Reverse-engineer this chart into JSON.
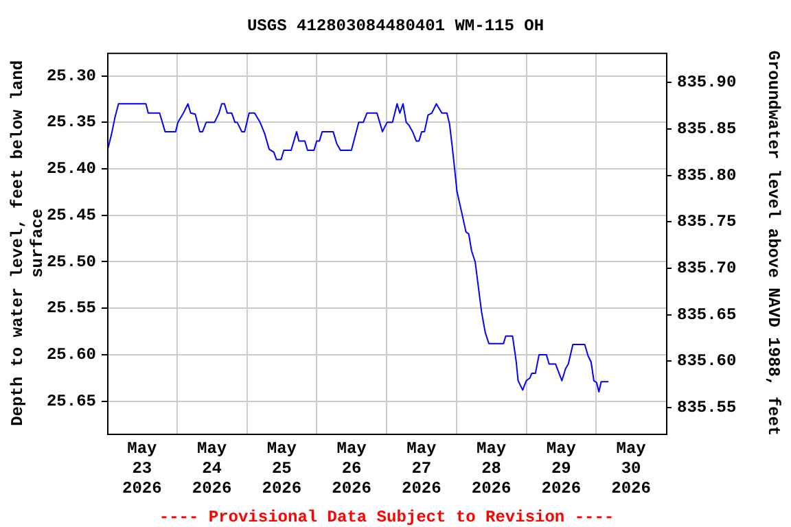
{
  "chart_data": {
    "type": "line",
    "title": "USGS 412803084480401 WM-115 OH",
    "ylabel": "Depth to water level, feet below land\nsurface",
    "y2label": "Groundwater level above NAVD 1988, feet",
    "annotations": [
      "---- Provisional Data Subject to Revision ----"
    ],
    "x": [
      "2026-05-23T00:18",
      "2026-05-23T01:34",
      "2026-05-23T02:40",
      "2026-05-23T03:55",
      "2026-05-23T13:20",
      "2026-05-23T14:07",
      "2026-05-23T18:02",
      "2026-05-23T19:55",
      "2026-05-23T23:32",
      "2026-05-24T00:19",
      "2026-05-24T02:12",
      "2026-05-24T03:46",
      "2026-05-24T04:42",
      "2026-05-24T06:16",
      "2026-05-24T07:50",
      "2026-05-24T08:47",
      "2026-05-24T10:02",
      "2026-05-24T12:52",
      "2026-05-24T14:26",
      "2026-05-24T15:22",
      "2026-05-24T16:19",
      "2026-05-24T17:15",
      "2026-05-24T18:49",
      "2026-05-24T19:55",
      "2026-05-24T20:42",
      "2026-05-24T22:16",
      "2026-05-24T23:13",
      "2026-05-25T00:47",
      "2026-05-25T02:40",
      "2026-05-25T04:33",
      "2026-05-25T06:07",
      "2026-05-25T07:41",
      "2026-05-25T09:15",
      "2026-05-25T10:12",
      "2026-05-25T11:46",
      "2026-05-25T12:42",
      "2026-05-25T15:13",
      "2026-05-25T17:06",
      "2026-05-25T17:53",
      "2026-05-25T19:55",
      "2026-05-25T20:52",
      "2026-05-25T23:04",
      "2026-05-26T00:00",
      "2026-05-26T00:56",
      "2026-05-26T01:53",
      "2026-05-26T05:39",
      "2026-05-26T06:54",
      "2026-05-26T08:10",
      "2026-05-26T11:55",
      "2026-05-26T14:26",
      "2026-05-26T16:00",
      "2026-05-26T17:15",
      "2026-05-26T20:42",
      "2026-05-26T22:35",
      "2026-05-27T00:09",
      "2026-05-27T02:02",
      "2026-05-27T03:37",
      "2026-05-27T04:33",
      "2026-05-27T05:39",
      "2026-05-27T06:45",
      "2026-05-27T07:41",
      "2026-05-27T08:56",
      "2026-05-27T10:12",
      "2026-05-27T11:08",
      "2026-05-27T12:05",
      "2026-05-27T13:01",
      "2026-05-27T14:16",
      "2026-05-27T15:32",
      "2026-05-27T17:06",
      "2026-05-27T18:59",
      "2026-05-27T20:43",
      "2026-05-27T21:39",
      "2026-05-27T22:35",
      "2026-05-27T23:41",
      "2026-05-28T00:10",
      "2026-05-28T01:44",
      "2026-05-28T03:17",
      "2026-05-28T04:14",
      "2026-05-28T05:11",
      "2026-05-28T06:26",
      "2026-05-28T07:32",
      "2026-05-28T08:38",
      "2026-05-28T09:53",
      "2026-05-28T11:08",
      "2026-05-28T16:10",
      "2026-05-28T16:56",
      "2026-05-28T19:17",
      "2026-05-28T20:33",
      "2026-05-28T21:11",
      "2026-05-28T22:45",
      "2026-05-29T00:00",
      "2026-05-29T01:15",
      "2026-05-29T01:53",
      "2026-05-29T03:08",
      "2026-05-29T04:23",
      "2026-05-29T06:54",
      "2026-05-29T07:50",
      "2026-05-29T10:02",
      "2026-05-29T12:14",
      "2026-05-29T13:29",
      "2026-05-29T14:26",
      "2026-05-29T16:00",
      "2026-05-29T20:05",
      "2026-05-29T21:11",
      "2026-05-29T22:16",
      "2026-05-29T23:13",
      "2026-05-30T00:09",
      "2026-05-30T00:56",
      "2026-05-30T01:44",
      "2026-05-30T04:14"
    ],
    "series": [
      {
        "color": "#0000ff",
        "values": [
          25.378,
          25.362,
          25.345,
          25.33,
          25.33,
          25.34,
          25.34,
          25.36,
          25.36,
          25.35,
          25.34,
          25.33,
          25.34,
          25.341,
          25.36,
          25.36,
          25.35,
          25.35,
          25.34,
          25.33,
          25.33,
          25.34,
          25.34,
          25.35,
          25.35,
          25.36,
          25.36,
          25.34,
          25.34,
          25.35,
          25.362,
          25.379,
          25.382,
          25.39,
          25.39,
          25.38,
          25.38,
          25.36,
          25.37,
          25.37,
          25.38,
          25.38,
          25.37,
          25.37,
          25.36,
          25.36,
          25.373,
          25.38,
          25.38,
          25.35,
          25.35,
          25.34,
          25.34,
          25.36,
          25.35,
          25.35,
          25.33,
          25.34,
          25.33,
          25.35,
          25.353,
          25.36,
          25.37,
          25.37,
          25.36,
          25.36,
          25.342,
          25.34,
          25.33,
          25.34,
          25.34,
          25.352,
          25.377,
          25.409,
          25.424,
          25.446,
          25.468,
          25.47,
          25.488,
          25.5,
          25.527,
          25.554,
          25.576,
          25.588,
          25.588,
          25.58,
          25.58,
          25.608,
          25.628,
          25.638,
          25.628,
          25.625,
          25.62,
          25.62,
          25.6,
          25.6,
          25.61,
          25.61,
          25.628,
          25.615,
          25.61,
          25.589,
          25.589,
          25.601,
          25.608,
          25.628,
          25.63,
          25.64,
          25.629,
          25.629
        ]
      }
    ],
    "xlim": [
      "2026-05-23T00:00",
      "2026-05-31T00:00"
    ],
    "xticks": [
      {
        "value": "2026-05-23T12:00",
        "label": "May\n23\n2026"
      },
      {
        "value": "2026-05-24T00:00",
        "label": null
      },
      {
        "value": "2026-05-24T12:00",
        "label": "May\n24\n2026"
      },
      {
        "value": "2026-05-25T00:00",
        "label": null
      },
      {
        "value": "2026-05-25T12:00",
        "label": "May\n25\n2026"
      },
      {
        "value": "2026-05-26T00:00",
        "label": null
      },
      {
        "value": "2026-05-26T12:00",
        "label": "May\n26\n2026"
      },
      {
        "value": "2026-05-27T00:00",
        "label": null
      },
      {
        "value": "2026-05-27T12:00",
        "label": "May\n27\n2026"
      },
      {
        "value": "2026-05-28T00:00",
        "label": null
      },
      {
        "value": "2026-05-28T12:00",
        "label": "May\n28\n2026"
      },
      {
        "value": "2026-05-29T00:00",
        "label": null
      },
      {
        "value": "2026-05-29T12:00",
        "label": "May\n29\n2026"
      },
      {
        "value": "2026-05-30T00:00",
        "label": null
      },
      {
        "value": "2026-05-30T12:00",
        "label": "May\n30\n2026"
      }
    ],
    "ylim": [
      25.685,
      25.275
    ],
    "yticks": [
      {
        "value": 25.3,
        "label": "25.30"
      },
      {
        "value": 25.35,
        "label": "25.35"
      },
      {
        "value": 25.4,
        "label": "25.40"
      },
      {
        "value": 25.45,
        "label": "25.45"
      },
      {
        "value": 25.5,
        "label": "25.50"
      },
      {
        "value": 25.55,
        "label": "25.55"
      },
      {
        "value": 25.6,
        "label": "25.60"
      },
      {
        "value": 25.65,
        "label": "25.65"
      }
    ],
    "y2lim": [
      835.522,
      835.932
    ],
    "y2ticks": [
      {
        "value": 835.55,
        "label": "835.55"
      },
      {
        "value": 835.6,
        "label": "835.60"
      },
      {
        "value": 835.65,
        "label": "835.65"
      },
      {
        "value": 835.7,
        "label": "835.70"
      },
      {
        "value": 835.75,
        "label": "835.75"
      },
      {
        "value": 835.8,
        "label": "835.80"
      },
      {
        "value": 835.85,
        "label": "835.85"
      },
      {
        "value": 835.9,
        "label": "835.90"
      }
    ],
    "grid": true,
    "legend": false,
    "marker": "none",
    "line_style": "solid"
  }
}
